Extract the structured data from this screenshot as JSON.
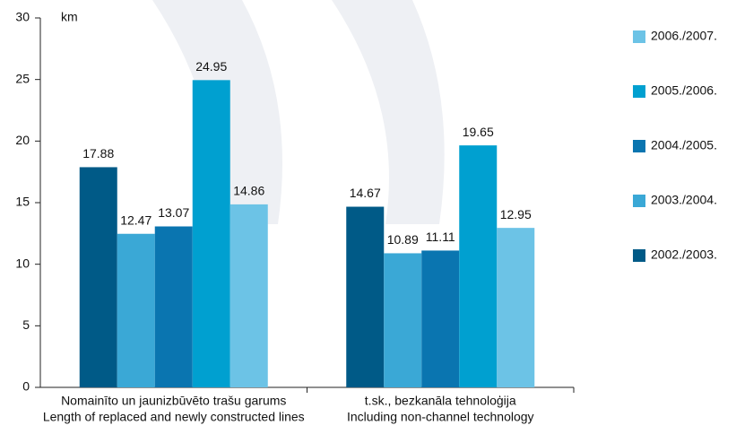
{
  "chart_data": {
    "type": "bar",
    "y_label": "km",
    "categories": [
      [
        "Nomainīto un jaunizbūvēto trašu garums",
        "Length of replaced and newly constructed lines"
      ],
      [
        "t.sk., bezkanāla tehnoloģija",
        "Including non-channel technology"
      ]
    ],
    "series": [
      {
        "name": "2002./2003.",
        "color": "#005a87",
        "values": [
          17.88,
          14.67
        ]
      },
      {
        "name": "2003./2004.",
        "color": "#3aa8d6",
        "values": [
          12.47,
          10.89
        ]
      },
      {
        "name": "2004./2005.",
        "color": "#0a75b0",
        "values": [
          13.07,
          11.11
        ]
      },
      {
        "name": "2005./2006.",
        "color": "#00a0d0",
        "values": [
          24.95,
          19.65
        ]
      },
      {
        "name": "2006./2007.",
        "color": "#6cc3e6",
        "values": [
          14.86,
          12.95
        ]
      }
    ],
    "ylim": [
      0,
      30
    ],
    "yticks": [
      0,
      5,
      10,
      15,
      20,
      25,
      30
    ],
    "legend": "right"
  }
}
